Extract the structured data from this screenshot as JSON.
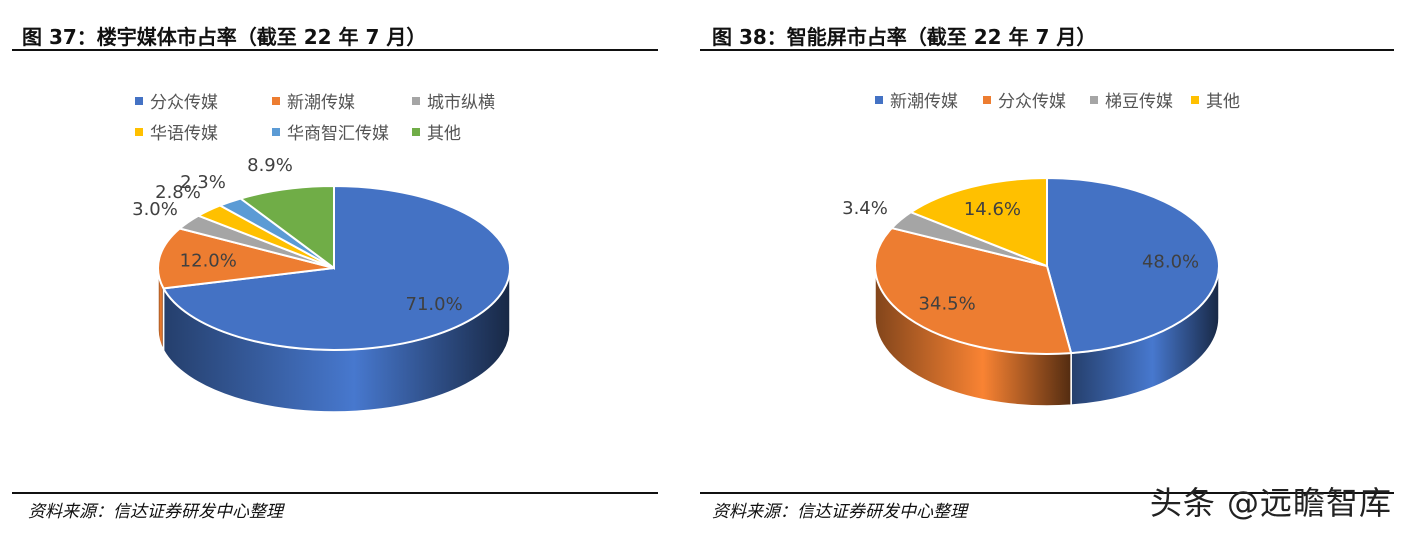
{
  "charts": [
    {
      "title": "图 37：楼宇媒体市占率（截至 22 年 7 月）",
      "source": "资料来源：信达证券研发中心整理"
    },
    {
      "title": "图 38：智能屏市占率（截至 22 年 7 月）",
      "source": "资料来源：信达证券研发中心整理"
    }
  ],
  "chart_data": [
    {
      "type": "pie",
      "title": "图 37：楼宇媒体市占率（截至 22 年 7 月）",
      "legend_position": "top",
      "labels": [
        "分众传媒",
        "新潮传媒",
        "城市纵横",
        "华语传媒",
        "华商智汇传媒",
        "其他"
      ],
      "values": [
        71.0,
        12.0,
        3.0,
        2.8,
        2.3,
        8.9
      ],
      "value_labels": [
        "71.0%",
        "12.0%",
        "3.0%",
        "2.8%",
        "2.3%",
        "8.9%"
      ],
      "colors": [
        "#4472C4",
        "#ED7D31",
        "#A5A5A5",
        "#FFC000",
        "#5B9BD5",
        "#70AD47"
      ]
    },
    {
      "type": "pie",
      "title": "图 38：智能屏市占率（截至 22 年 7 月）",
      "legend_position": "top",
      "labels": [
        "新潮传媒",
        "分众传媒",
        "梯豆传媒",
        "其他"
      ],
      "values": [
        48.0,
        34.5,
        3.4,
        14.6
      ],
      "value_labels": [
        "48.0%",
        "34.5%",
        "3.4%",
        "14.6%"
      ],
      "colors": [
        "#4472C4",
        "#ED7D31",
        "#A5A5A5",
        "#FFC000"
      ]
    }
  ],
  "watermark": "头条 @远瞻智库"
}
